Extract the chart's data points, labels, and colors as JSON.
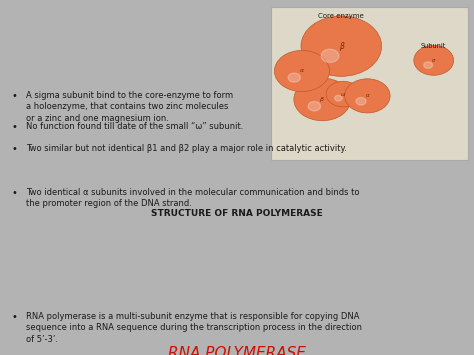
{
  "bg_color": "#b3b3b3",
  "title": "RNA POLYMERASE",
  "title_color": "#cc1100",
  "title_fontsize": 11,
  "body_fontsize": 6.0,
  "bold_fontsize": 6.5,
  "text_color": "#1a1a1a",
  "bullet1": "RNA polymerase is a multi-subunit enzyme that is responsible for copying DNA\nsequence into a RNA sequence during the transcription process in the direction\nof 5’-3’.",
  "structure_header": "STRUCTURE OF RNA POLYMERASE",
  "bullet2": "Two identical α subunits involved in the molecular communication and binds to\nthe promoter region of the DNA strand.",
  "bullet3": "Two similar but not identical β1 and β2 play a major role in catalytic activity.",
  "bullet4": "No function found till date of the small “ω” subunit.",
  "bullet5": "A sigma subunit bind to the core-enzyme to form\na holoenzyme, that contains two zinc molecules\nor a zinc and one magnesium ion.",
  "image_caption1": "Core enzyme",
  "image_caption2": "Subunit",
  "sphere_color": "#e8784a",
  "sphere_edge": "#c05828",
  "sphere_label_color": "#7a2800",
  "img_bg": "#ddd8c8",
  "img_border": "#aaaaaa"
}
